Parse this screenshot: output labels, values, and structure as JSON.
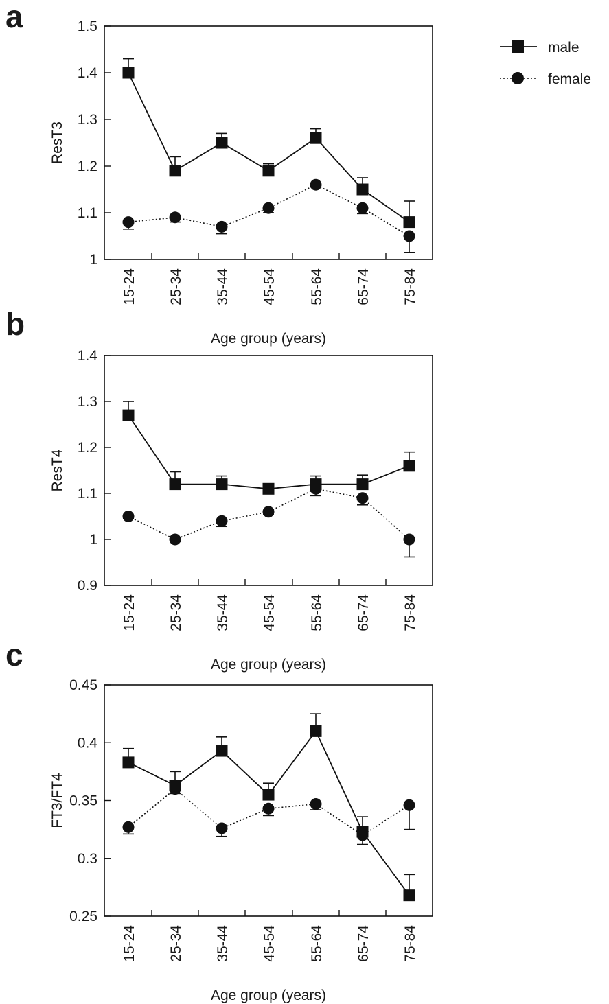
{
  "legend": [
    {
      "label": "male",
      "marker": "square",
      "line": "solid"
    },
    {
      "label": "female",
      "marker": "circle",
      "line": "dotted"
    }
  ],
  "chart_data": [
    {
      "panel": "a",
      "type": "line",
      "xlabel": "Age group (years)",
      "ylabel": "ResT3",
      "ylim": [
        1,
        1.5
      ],
      "yticks": [
        "1",
        "1.1",
        "1.2",
        "1.3",
        "1.4",
        "1.5"
      ],
      "categories": [
        "15-24",
        "25-34",
        "35-44",
        "45-54",
        "55-64",
        "65-74",
        "75-84"
      ],
      "series": [
        {
          "name": "male",
          "values": [
            1.4,
            1.19,
            1.25,
            1.19,
            1.26,
            1.15,
            1.08
          ],
          "err": [
            0.03,
            0.03,
            0.02,
            0.015,
            0.02,
            0.025,
            0.045
          ]
        },
        {
          "name": "female",
          "values": [
            1.08,
            1.09,
            1.07,
            1.11,
            1.16,
            1.11,
            1.05
          ],
          "err": [
            0.015,
            0.01,
            0.015,
            0.01,
            0.005,
            0.012,
            0.035
          ]
        }
      ]
    },
    {
      "panel": "b",
      "type": "line",
      "xlabel": "Age group (years)",
      "ylabel": "ResT4",
      "ylim": [
        0.9,
        1.4
      ],
      "yticks": [
        "0.9",
        "1",
        "1.1",
        "1.2",
        "1.3",
        "1.4"
      ],
      "categories": [
        "15-24",
        "25-34",
        "35-44",
        "45-54",
        "55-64",
        "65-74",
        "75-84"
      ],
      "series": [
        {
          "name": "male",
          "values": [
            1.27,
            1.12,
            1.12,
            1.11,
            1.12,
            1.12,
            1.16
          ],
          "err": [
            0.03,
            0.027,
            0.018,
            0.01,
            0.018,
            0.02,
            0.03
          ]
        },
        {
          "name": "female",
          "values": [
            1.05,
            1.0,
            1.04,
            1.06,
            1.11,
            1.09,
            1.0
          ],
          "err": [
            0.005,
            0.005,
            0.012,
            0.005,
            0.015,
            0.015,
            0.038
          ]
        }
      ]
    },
    {
      "panel": "c",
      "type": "line",
      "xlabel": "Age group (years)",
      "ylabel": "FT3/FT4",
      "ylim": [
        0.25,
        0.45
      ],
      "yticks": [
        "0.25",
        "0.3",
        "0.35",
        "0.4",
        "0.45"
      ],
      "categories": [
        "15-24",
        "25-34",
        "35-44",
        "45-54",
        "55-64",
        "65-74",
        "75-84"
      ],
      "series": [
        {
          "name": "male",
          "values": [
            0.383,
            0.363,
            0.393,
            0.355,
            0.41,
            0.323,
            0.268
          ],
          "err": [
            0.012,
            0.012,
            0.012,
            0.01,
            0.015,
            0.013,
            0.018
          ]
        },
        {
          "name": "female",
          "values": [
            0.327,
            0.36,
            0.326,
            0.343,
            0.347,
            0.32,
            0.346
          ],
          "err": [
            0.006,
            0.004,
            0.007,
            0.006,
            0.005,
            0.008,
            0.021
          ]
        }
      ]
    }
  ]
}
